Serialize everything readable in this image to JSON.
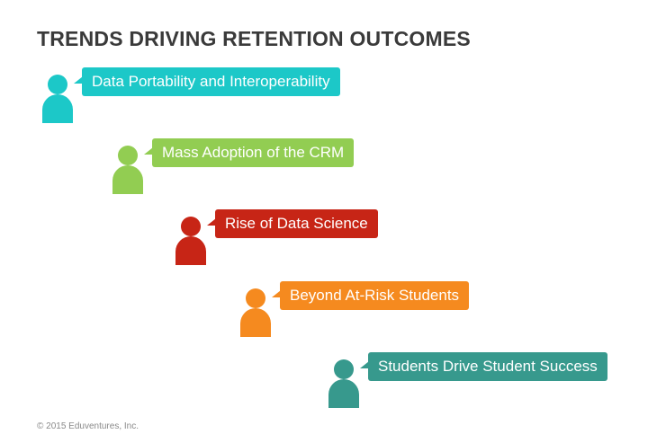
{
  "title": "TRENDS DRIVING RETENTION OUTCOMES",
  "trends": [
    {
      "label": "Data Portability and Interoperability",
      "color": "#1cc8c8"
    },
    {
      "label": "Mass Adoption of the CRM",
      "color": "#92cd52"
    },
    {
      "label": "Rise of Data Science",
      "color": "#c72516"
    },
    {
      "label": "Beyond At-Risk Students",
      "color": "#f58a1f"
    },
    {
      "label": "Students Drive Student Success",
      "color": "#37998d"
    }
  ],
  "footer": "© 2015 Eduventures, Inc."
}
